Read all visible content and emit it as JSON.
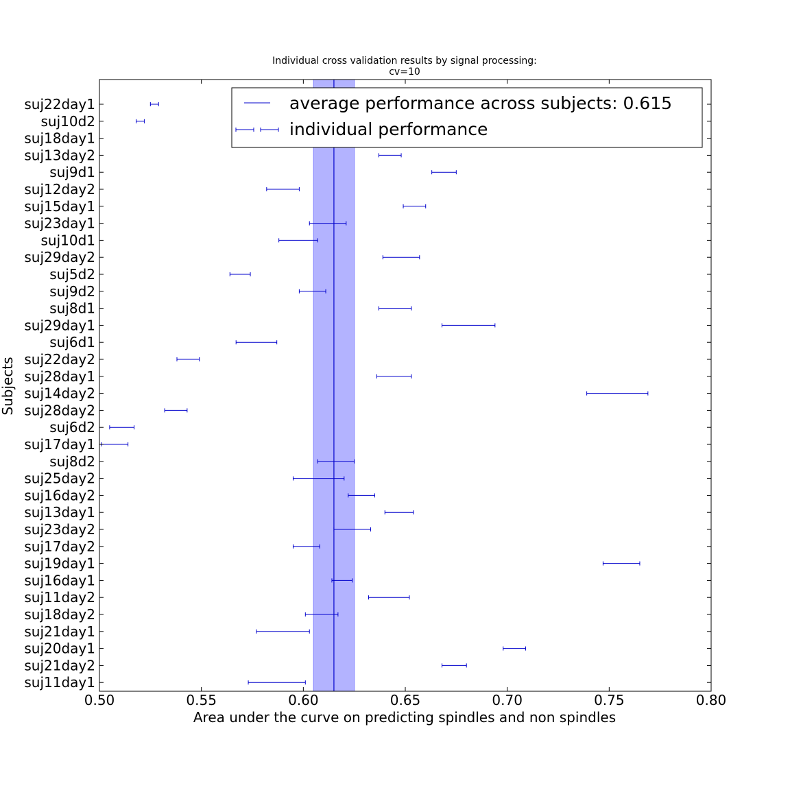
{
  "chart_data": {
    "type": "errorbar",
    "title": "Individual cross validation results by signal processing:",
    "subtitle": "cv=10",
    "xlabel": "Area under the curve on predicting spindles and non spindles",
    "ylabel": "Subjects",
    "xlim": [
      0.5,
      0.8
    ],
    "xticks": [
      "0.50",
      "0.55",
      "0.60",
      "0.65",
      "0.70",
      "0.75",
      "0.80"
    ],
    "grid": false,
    "legend_position": "top-right",
    "colors": {
      "line": "#0000cc",
      "band": "#b3b3ff",
      "band_edge": "#8080ff"
    },
    "average": {
      "value": 0.615,
      "band": [
        0.605,
        0.625
      ]
    },
    "legend": [
      "average performance across subjects: 0.615",
      "individual performance"
    ],
    "subjects": [
      {
        "name": "suj22day1",
        "low": 0.525,
        "high": 0.529
      },
      {
        "name": "suj10d2",
        "low": 0.518,
        "high": 0.522
      },
      {
        "name": "suj18day1",
        "low": null,
        "high": null
      },
      {
        "name": "suj13day2",
        "low": 0.637,
        "high": 0.648
      },
      {
        "name": "suj9d1",
        "low": 0.663,
        "high": 0.675
      },
      {
        "name": "suj12day2",
        "low": 0.582,
        "high": 0.598
      },
      {
        "name": "suj15day1",
        "low": 0.649,
        "high": 0.66
      },
      {
        "name": "suj23day1",
        "low": 0.603,
        "high": 0.621
      },
      {
        "name": "suj10d1",
        "low": 0.588,
        "high": 0.607
      },
      {
        "name": "suj29day2",
        "low": 0.639,
        "high": 0.657
      },
      {
        "name": "suj5d2",
        "low": 0.564,
        "high": 0.574
      },
      {
        "name": "suj9d2",
        "low": 0.598,
        "high": 0.611
      },
      {
        "name": "suj8d1",
        "low": 0.637,
        "high": 0.653
      },
      {
        "name": "suj29day1",
        "low": 0.668,
        "high": 0.694
      },
      {
        "name": "suj6d1",
        "low": 0.567,
        "high": 0.587
      },
      {
        "name": "suj22day2",
        "low": 0.538,
        "high": 0.549
      },
      {
        "name": "suj28day1",
        "low": 0.636,
        "high": 0.653
      },
      {
        "name": "suj14day2",
        "low": 0.739,
        "high": 0.769
      },
      {
        "name": "suj28day2",
        "low": 0.532,
        "high": 0.543
      },
      {
        "name": "suj6d2",
        "low": 0.505,
        "high": 0.517
      },
      {
        "name": "suj17day1",
        "low": 0.501,
        "high": 0.514
      },
      {
        "name": "suj8d2",
        "low": 0.607,
        "high": 0.625
      },
      {
        "name": "suj25day2",
        "low": 0.595,
        "high": 0.62
      },
      {
        "name": "suj16day2",
        "low": 0.622,
        "high": 0.635
      },
      {
        "name": "suj13day1",
        "low": 0.64,
        "high": 0.654
      },
      {
        "name": "suj23day2",
        "low": 0.615,
        "high": 0.633
      },
      {
        "name": "suj17day2",
        "low": 0.595,
        "high": 0.608
      },
      {
        "name": "suj19day1",
        "low": 0.747,
        "high": 0.765
      },
      {
        "name": "suj16day1",
        "low": 0.614,
        "high": 0.624
      },
      {
        "name": "suj11day2",
        "low": 0.632,
        "high": 0.652
      },
      {
        "name": "suj18day2",
        "low": 0.601,
        "high": 0.617
      },
      {
        "name": "suj21day1",
        "low": 0.577,
        "high": 0.603
      },
      {
        "name": "suj20day1",
        "low": 0.698,
        "high": 0.709
      },
      {
        "name": "suj21day2",
        "low": 0.668,
        "high": 0.68
      },
      {
        "name": "suj11day1",
        "low": 0.573,
        "high": 0.601
      }
    ]
  }
}
